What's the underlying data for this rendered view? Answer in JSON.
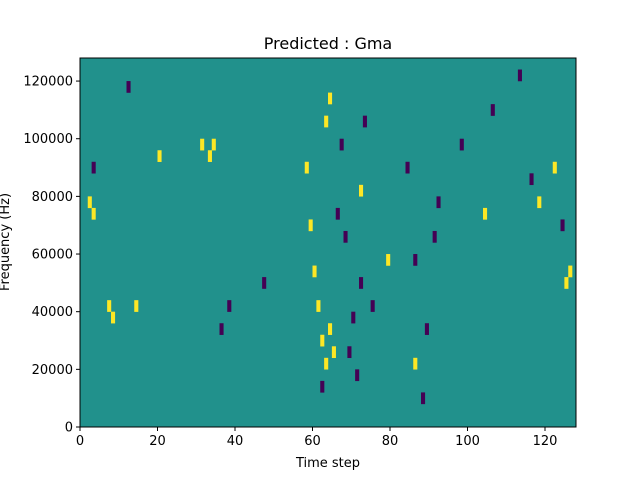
{
  "chart_data": {
    "type": "heatmap",
    "title": "Predicted : Gma",
    "xlabel": "Time step",
    "ylabel": "Frequency (Hz)",
    "xlim": [
      0,
      128
    ],
    "ylim": [
      0,
      128000
    ],
    "x_ticks": [
      0,
      20,
      40,
      60,
      80,
      100,
      120
    ],
    "y_ticks": [
      0,
      20000,
      40000,
      60000,
      80000,
      100000,
      120000
    ],
    "n_time_steps": 128,
    "n_freq_bins": 32,
    "colormap": {
      "background": "#21918c",
      "high": "#fde725",
      "low": "#440154"
    },
    "cells_high": [
      [
        2,
        19
      ],
      [
        3,
        18
      ],
      [
        7,
        10
      ],
      [
        8,
        9
      ],
      [
        14,
        10
      ],
      [
        20,
        23
      ],
      [
        31,
        24
      ],
      [
        33,
        23
      ],
      [
        34,
        24
      ],
      [
        58,
        22
      ],
      [
        59,
        17
      ],
      [
        60,
        13
      ],
      [
        61,
        10
      ],
      [
        62,
        7
      ],
      [
        63,
        5
      ],
      [
        64,
        8
      ],
      [
        65,
        6
      ],
      [
        63,
        26
      ],
      [
        64,
        28
      ],
      [
        72,
        20
      ],
      [
        79,
        14
      ],
      [
        86,
        5
      ],
      [
        104,
        18
      ],
      [
        118,
        19
      ],
      [
        122,
        22
      ],
      [
        125,
        12
      ],
      [
        126,
        13
      ]
    ],
    "cells_low": [
      [
        3,
        22
      ],
      [
        12,
        29
      ],
      [
        36,
        8
      ],
      [
        38,
        10
      ],
      [
        47,
        12
      ],
      [
        62,
        3
      ],
      [
        66,
        18
      ],
      [
        67,
        24
      ],
      [
        68,
        16
      ],
      [
        69,
        6
      ],
      [
        70,
        9
      ],
      [
        71,
        4
      ],
      [
        72,
        12
      ],
      [
        73,
        26
      ],
      [
        75,
        10
      ],
      [
        84,
        22
      ],
      [
        86,
        14
      ],
      [
        88,
        2
      ],
      [
        89,
        8
      ],
      [
        91,
        16
      ],
      [
        92,
        19
      ],
      [
        98,
        24
      ],
      [
        106,
        27
      ],
      [
        113,
        30
      ],
      [
        116,
        21
      ],
      [
        124,
        17
      ]
    ]
  }
}
